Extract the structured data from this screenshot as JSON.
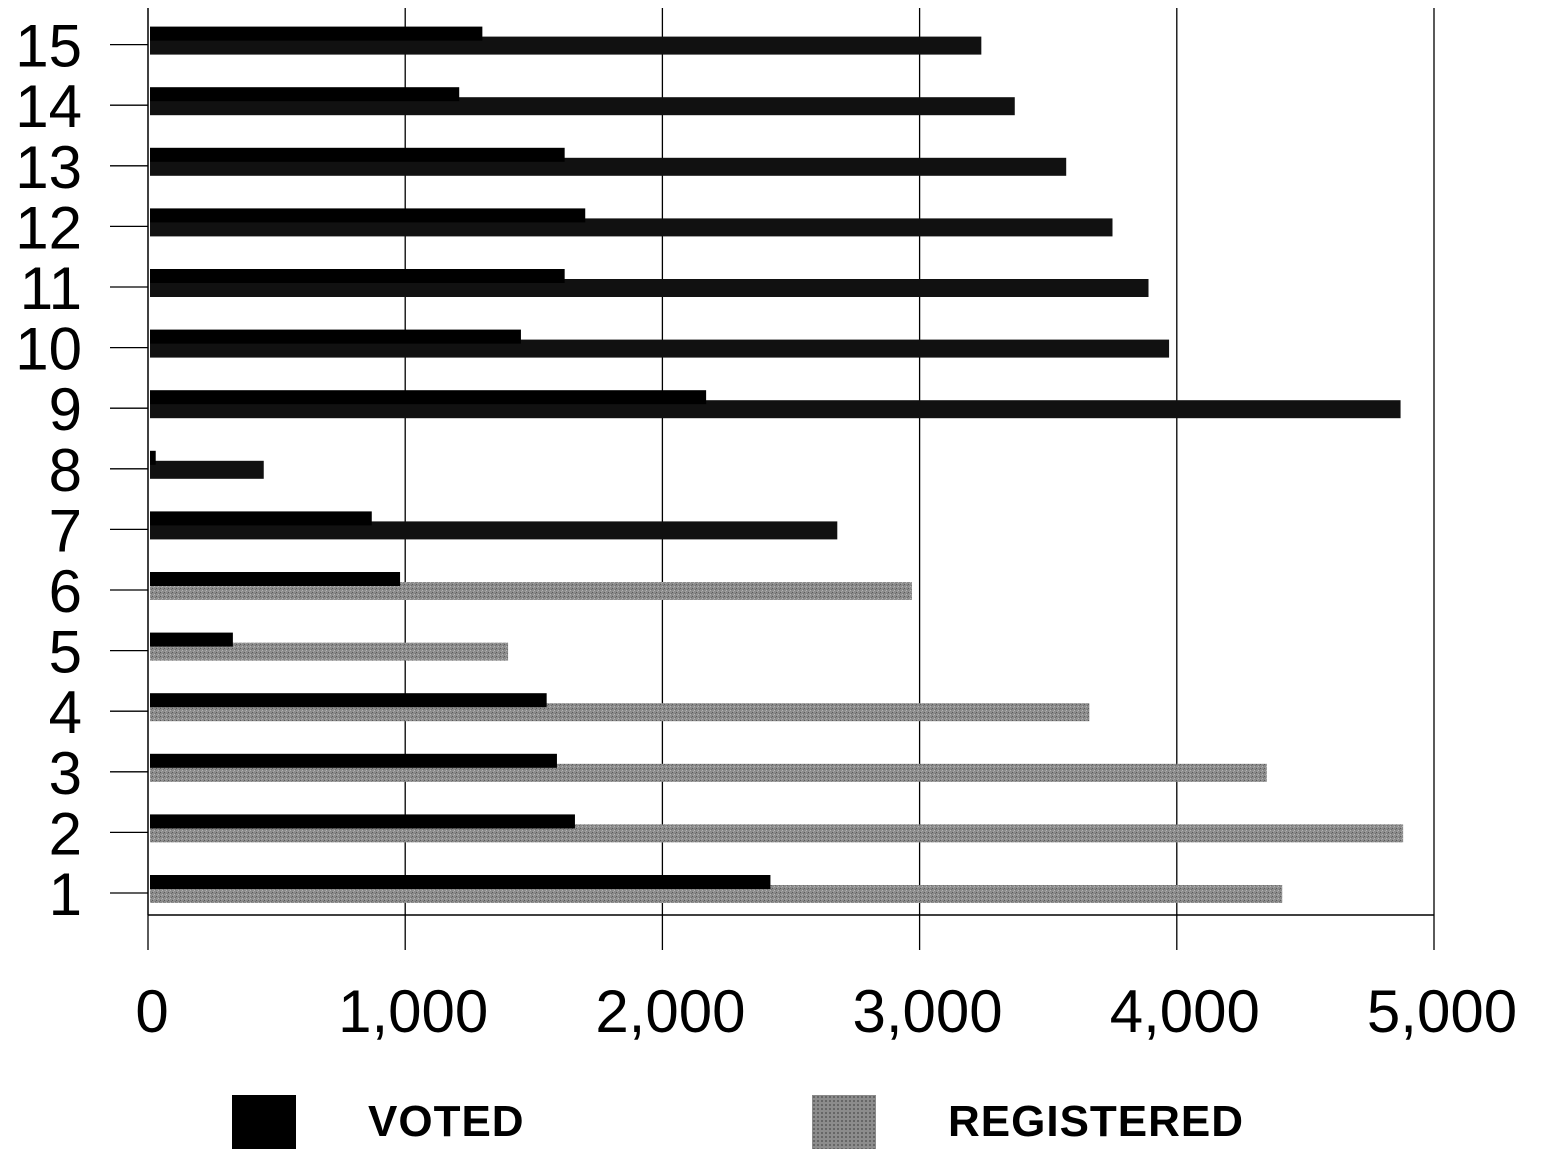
{
  "chart_data": {
    "type": "bar",
    "orientation": "horizontal",
    "title": "",
    "xlabel": "",
    "ylabel": "",
    "categories": [
      "1",
      "2",
      "3",
      "4",
      "5",
      "6",
      "7",
      "8",
      "9",
      "10",
      "11",
      "12",
      "13",
      "14",
      "15"
    ],
    "series": [
      {
        "name": "VOTED",
        "color": "#000000",
        "values": [
          2420,
          1660,
          1590,
          1550,
          330,
          980,
          870,
          30,
          2170,
          1450,
          1620,
          1700,
          1620,
          1210,
          1300
        ]
      },
      {
        "name": "REGISTERED",
        "color": "#8c8c8c",
        "values": [
          4410,
          4880,
          4350,
          3660,
          1400,
          2970,
          2680,
          450,
          4870,
          3970,
          3890,
          3750,
          3570,
          3370,
          3240
        ]
      }
    ],
    "xlim": [
      0,
      5000
    ],
    "xticks": [
      0,
      1000,
      2000,
      3000,
      4000,
      5000
    ],
    "xtick_labels": [
      "0",
      "1,000",
      "2,000",
      "3,000",
      "4,000",
      "5,000"
    ],
    "grid": "vertical",
    "legend_position": "bottom"
  },
  "legend": {
    "voted_label": "VOTED",
    "registered_label": "REGISTERED"
  }
}
